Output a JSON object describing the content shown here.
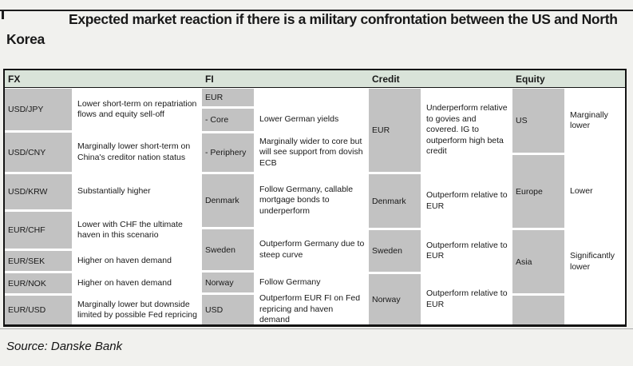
{
  "page": {
    "title": "Expected market reaction if there is a military confrontation between the US and North Korea",
    "source": "Source: Danske Bank"
  },
  "colors": {
    "header_bg": "#d9e3d9",
    "label_bg": "#c2c2c2",
    "page_bg": "#f1f1ee",
    "border": "#141414"
  },
  "table": {
    "panels": [
      {
        "header": "FX",
        "rows": [
          {
            "label": "USD/JPY",
            "desc": "Lower short-term on repatriation flows and equity sell-off"
          },
          {
            "label": "USD/CNY",
            "desc": "Marginally lower short-term on China's creditor nation status"
          },
          {
            "label": "USD/KRW",
            "desc": "Substantially higher"
          },
          {
            "label": "EUR/CHF",
            "desc": "Lower with CHF the ultimate haven in this scenario"
          },
          {
            "label": "EUR/SEK",
            "desc": "Higher on haven demand"
          },
          {
            "label": "EUR/NOK",
            "desc": "Higher on haven demand"
          },
          {
            "label": "EUR/USD",
            "desc": "Marginally lower but downside limited by possible Fed repricing"
          }
        ]
      },
      {
        "header": "FI",
        "rows": [
          {
            "label": "EUR",
            "desc": ""
          },
          {
            "label": "- Core",
            "desc": "Lower German yields"
          },
          {
            "label": "- Periphery",
            "desc": "Marginally wider to core but will see support from dovish ECB"
          },
          {
            "label": "Denmark",
            "desc": "Follow Germany, callable mortgage bonds to underperform"
          },
          {
            "label": "Sweden",
            "desc": "Outperform Germany due to steep curve"
          },
          {
            "label": "Norway",
            "desc": "Follow Germany"
          },
          {
            "label": "USD",
            "desc": "Outperform EUR FI on Fed repricing and haven demand"
          }
        ]
      },
      {
        "header": "Credit",
        "rows": [
          {
            "label": "EUR",
            "desc": "Underperform relative to govies and covered. IG to outperform high beta credit"
          },
          {
            "label": "Denmark",
            "desc": "Outperform relative to EUR"
          },
          {
            "label": "Sweden",
            "desc": "Outperform relative to EUR"
          },
          {
            "label": "Norway",
            "desc": "Outperform relative to EUR"
          }
        ]
      },
      {
        "header": "Equity",
        "rows": [
          {
            "label": "US",
            "desc": "Marginally lower"
          },
          {
            "label": "Europe",
            "desc": "Lower"
          },
          {
            "label": "Asia",
            "desc": "Significantly lower"
          },
          {
            "label": "",
            "desc": ""
          }
        ]
      }
    ]
  }
}
